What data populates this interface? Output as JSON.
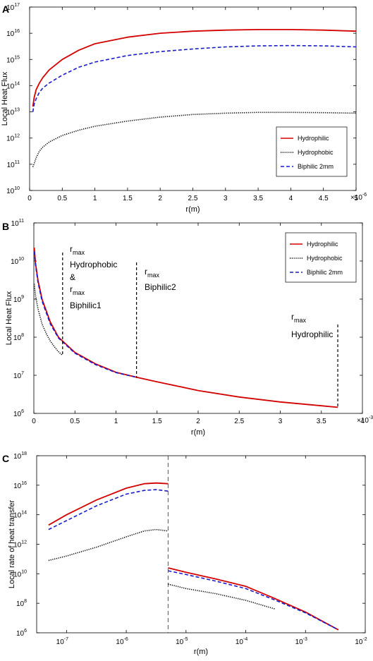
{
  "chart_data": [
    {
      "panel": "A",
      "type": "line",
      "xlabel": "r(m)",
      "ylabel": "Local Heat Flux",
      "x_multiplier_label": "×10",
      "x_multiplier_exp": "-6",
      "xlim": [
        0,
        5
      ],
      "x_ticks": [
        "0",
        "0.5",
        "1",
        "1.5",
        "2",
        "2.5",
        "3",
        "3.5",
        "4",
        "4.5",
        "5"
      ],
      "yscale": "log",
      "ylim_exp": [
        10,
        17
      ],
      "y_ticks_base": "10",
      "y_ticks_exp": [
        "10",
        "11",
        "12",
        "13",
        "14",
        "15",
        "16",
        "17"
      ],
      "legend_position": "lower-right",
      "series": [
        {
          "name": "Hydrophilic",
          "color": "#d40000",
          "style": "solid",
          "x": [
            0.05,
            0.07,
            0.1,
            0.15,
            0.2,
            0.3,
            0.5,
            0.75,
            1,
            1.5,
            2,
            2.5,
            3,
            3.5,
            4,
            4.5,
            5
          ],
          "y_log10": [
            13.2,
            13.55,
            13.85,
            14.1,
            14.3,
            14.6,
            15.0,
            15.35,
            15.6,
            15.85,
            16.0,
            16.08,
            16.12,
            16.14,
            16.14,
            16.12,
            16.08
          ]
        },
        {
          "name": "Hydrophobic",
          "color": "#000000",
          "style": "dotted",
          "x": [
            0.05,
            0.08,
            0.1,
            0.15,
            0.2,
            0.3,
            0.5,
            0.75,
            1,
            1.5,
            2,
            2.5,
            3,
            3.5,
            4,
            4.5,
            5
          ],
          "y_log10": [
            10.9,
            11.1,
            11.25,
            11.5,
            11.65,
            11.85,
            12.1,
            12.3,
            12.45,
            12.65,
            12.8,
            12.9,
            12.95,
            12.98,
            12.98,
            12.97,
            12.95
          ]
        },
        {
          "name": "Biphilic 2mm",
          "color": "#1a1acc",
          "style": "dashed",
          "x": [
            0.05,
            0.07,
            0.1,
            0.15,
            0.2,
            0.3,
            0.5,
            0.75,
            1,
            1.5,
            2,
            2.5,
            3,
            3.5,
            4,
            4.5,
            5
          ],
          "y_log10": [
            13.0,
            13.3,
            13.5,
            13.75,
            13.9,
            14.1,
            14.4,
            14.7,
            14.9,
            15.15,
            15.3,
            15.4,
            15.48,
            15.52,
            15.53,
            15.52,
            15.48
          ]
        }
      ]
    },
    {
      "panel": "B",
      "type": "line",
      "xlabel": "r(m)",
      "ylabel": "Local Heat Flux",
      "x_multiplier_label": "×10",
      "x_multiplier_exp": "-3",
      "xlim": [
        0,
        4
      ],
      "x_ticks": [
        "0",
        "0.5",
        "1",
        "1.5",
        "2",
        "2.5",
        "3",
        "3.5",
        "4"
      ],
      "yscale": "log",
      "ylim_exp": [
        6,
        11
      ],
      "y_ticks_base": "10",
      "y_ticks_exp": [
        "6",
        "7",
        "8",
        "9",
        "10",
        "11"
      ],
      "legend_position": "top-right",
      "series": [
        {
          "name": "Hydrophilic",
          "color": "#d40000",
          "style": "solid",
          "x": [
            0.005,
            0.02,
            0.05,
            0.1,
            0.2,
            0.3,
            0.5,
            0.75,
            1,
            1.25,
            1.5,
            2,
            2.5,
            3,
            3.5,
            3.7
          ],
          "y_log10": [
            10.35,
            9.95,
            9.5,
            9.0,
            8.4,
            8.0,
            7.6,
            7.3,
            7.08,
            6.95,
            6.83,
            6.6,
            6.43,
            6.3,
            6.2,
            6.16
          ]
        },
        {
          "name": "Hydrophobic",
          "color": "#000000",
          "style": "dotted",
          "x": [
            0.005,
            0.02,
            0.05,
            0.1,
            0.15,
            0.2,
            0.25,
            0.3,
            0.35
          ],
          "y_log10": [
            9.4,
            9.1,
            8.75,
            8.35,
            8.1,
            7.9,
            7.75,
            7.62,
            7.52
          ]
        },
        {
          "name": "Biphilic 2mm",
          "color": "#1a1acc",
          "style": "dashed",
          "x": [
            0.005,
            0.02,
            0.05,
            0.1,
            0.2,
            0.3,
            0.5,
            0.75,
            1,
            1.25
          ],
          "y_log10": [
            10.25,
            9.9,
            9.45,
            8.95,
            8.35,
            7.98,
            7.58,
            7.28,
            7.07,
            6.95
          ]
        }
      ],
      "annotations": [
        {
          "main": "r",
          "sub": "max",
          "lines": [
            "Hydrophobic",
            "&"
          ],
          "second_main": "r",
          "second_sub": "max",
          "second_line": "Biphilic1",
          "x_marker": 0.35
        },
        {
          "main": "r",
          "sub": "max",
          "lines": [
            "Biphilic2"
          ],
          "x_marker": 1.25
        },
        {
          "main": "r",
          "sub": "max",
          "lines": [
            "Hydrophilic"
          ],
          "x_marker": 3.7
        }
      ]
    },
    {
      "panel": "C",
      "type": "line",
      "xlabel": "r(m)",
      "ylabel": "Local rate of heat transfer",
      "xscale": "log",
      "xlim_exp": [
        -7.5,
        -2
      ],
      "x_ticks_base": "10",
      "x_ticks_exp": [
        "-7",
        "-6",
        "-5",
        "-4",
        "-3",
        "-2"
      ],
      "yscale": "log",
      "ylim_exp": [
        6,
        18
      ],
      "y_ticks_base": "10",
      "y_ticks_exp": [
        "6",
        "8",
        "10",
        "12",
        "14",
        "16",
        "18"
      ],
      "separator_x_exp": -5.3,
      "series": [
        {
          "name": "Hydrophilic",
          "color": "#d40000",
          "style": "solid",
          "segments": [
            {
              "x_exp": [
                -7.3,
                -7,
                -6.5,
                -6,
                -5.7,
                -5.5,
                -5.3
              ],
              "y_log10": [
                13.3,
                14.0,
                15.0,
                15.8,
                16.1,
                16.15,
                16.1
              ]
            },
            {
              "x_exp": [
                -5.3,
                -5,
                -4.5,
                -4,
                -3.5,
                -3,
                -2.45
              ],
              "y_log10": [
                10.4,
                10.1,
                9.65,
                9.15,
                8.3,
                7.4,
                6.2
              ]
            }
          ]
        },
        {
          "name": "Hydrophobic",
          "color": "#000000",
          "style": "dotted",
          "segments": [
            {
              "x_exp": [
                -7.3,
                -7,
                -6.5,
                -6,
                -5.7,
                -5.5,
                -5.3
              ],
              "y_log10": [
                10.9,
                11.2,
                11.8,
                12.5,
                12.9,
                13.0,
                12.9
              ]
            },
            {
              "x_exp": [
                -5.3,
                -5,
                -4.5,
                -4,
                -3.5
              ],
              "y_log10": [
                9.3,
                9.0,
                8.65,
                8.2,
                7.6
              ]
            }
          ]
        },
        {
          "name": "Biphilic 2mm",
          "color": "#1a1acc",
          "style": "dashed",
          "segments": [
            {
              "x_exp": [
                -7.3,
                -7,
                -6.5,
                -6,
                -5.7,
                -5.5,
                -5.3
              ],
              "y_log10": [
                13.0,
                13.6,
                14.6,
                15.4,
                15.65,
                15.7,
                15.6
              ]
            },
            {
              "x_exp": [
                -5.3,
                -5,
                -4.5,
                -4,
                -3.5,
                -3,
                -2.45
              ],
              "y_log10": [
                10.2,
                9.95,
                9.5,
                9.0,
                8.2,
                7.35,
                6.2
              ]
            }
          ]
        }
      ]
    }
  ]
}
